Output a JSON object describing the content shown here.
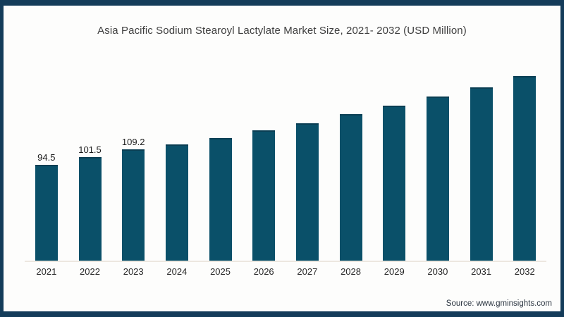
{
  "title": "Asia Pacific Sodium Stearoyl Lactylate Market Size, 2021- 2032 (USD Million)",
  "source": "Source: www.gminsights.com",
  "colors": {
    "frame_border": "#143c5a",
    "bar_fill": "#0a5069",
    "bar_top_edge": "#0a3e53",
    "axis_line": "#ede7e0",
    "title_text": "#3f3f3f",
    "value_label_text": "#1c1c1c",
    "tick_text": "#262626",
    "source_text": "#2a3440",
    "background": "#fdfdfc"
  },
  "chart_data": {
    "type": "bar",
    "title": "Asia Pacific Sodium Stearoyl Lactylate Market Size, 2021- 2032 (USD Million)",
    "categories": [
      "2021",
      "2022",
      "2023",
      "2024",
      "2025",
      "2026",
      "2027",
      "2028",
      "2029",
      "2030",
      "2031",
      "2032"
    ],
    "values": [
      94.5,
      101.5,
      109.2,
      114.0,
      120.5,
      128.3,
      135.2,
      143.8,
      152.5,
      161.0,
      170.0,
      181.5
    ],
    "data_labels": [
      "94.5",
      "101.5",
      "109.2",
      "",
      "",
      "",
      "",
      "",
      "",
      "",
      "",
      ""
    ],
    "xlabel": "",
    "ylabel": "",
    "ylim": [
      0,
      200
    ],
    "grid": false,
    "legend": false,
    "note": "Only 2021-2023 carry visible data labels; remaining values estimated from bar heights"
  }
}
